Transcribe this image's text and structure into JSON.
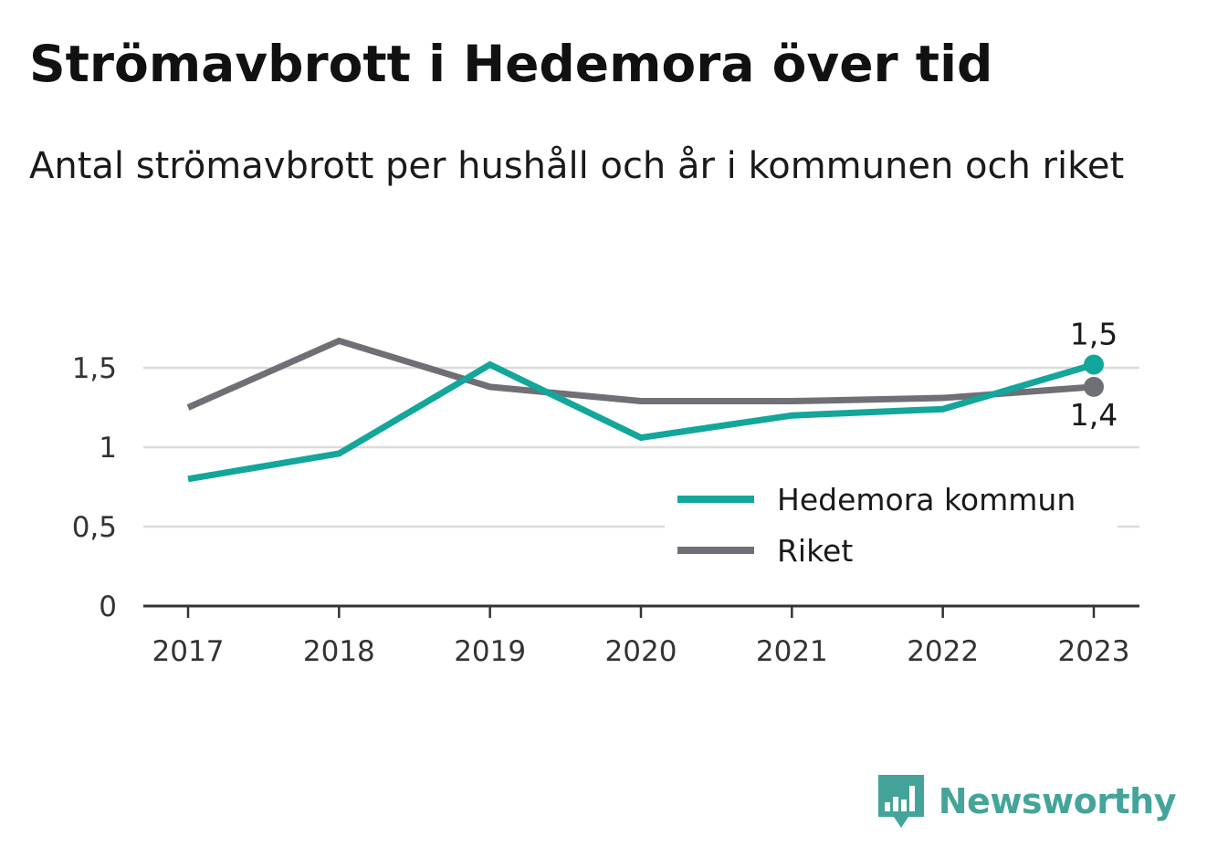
{
  "title": "Strömavbrott i Hedemora över tid",
  "subtitle": "Antal strömavbrott per hushåll och år i kommunen och riket",
  "brand": {
    "name": "Newsworthy",
    "icon": "bar-chart-speech-bubble-icon",
    "color": "#44a49a"
  },
  "chart_data": {
    "type": "line",
    "x": [
      "2017",
      "2018",
      "2019",
      "2020",
      "2021",
      "2022",
      "2023"
    ],
    "ylim": [
      0,
      1.8
    ],
    "yticks": [
      {
        "value": 0,
        "label": "0"
      },
      {
        "value": 0.5,
        "label": "0,5"
      },
      {
        "value": 1,
        "label": "1"
      },
      {
        "value": 1.5,
        "label": "1,5"
      }
    ],
    "grid": true,
    "legend_position": "bottom-right",
    "series": [
      {
        "name": "Hedemora kommun",
        "color": "#13a69a",
        "values": [
          0.8,
          0.96,
          1.52,
          1.06,
          1.2,
          1.24,
          1.52
        ],
        "end_label": "1,5"
      },
      {
        "name": "Riket",
        "color": "#6f6f76",
        "values": [
          1.25,
          1.67,
          1.38,
          1.29,
          1.29,
          1.31,
          1.38
        ],
        "end_label": "1,4"
      }
    ]
  }
}
